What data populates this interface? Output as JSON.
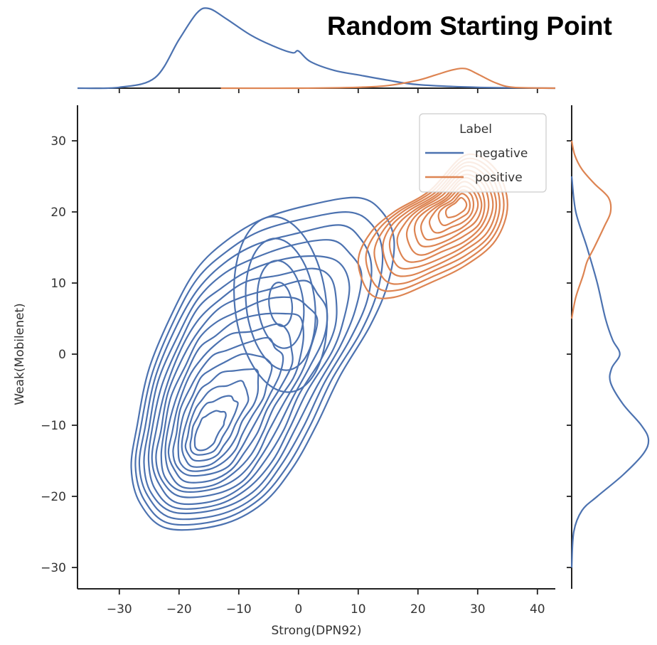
{
  "chart_data": {
    "type": "kde_contour_joint",
    "title": "Random Starting Point",
    "xlabel": "Strong(DPN92)",
    "ylabel": "Weak(Mobilenet)",
    "xlim": [
      -37,
      43
    ],
    "ylim": [
      -33,
      35
    ],
    "xticks": [
      -30,
      -20,
      -10,
      0,
      10,
      20,
      30,
      40
    ],
    "yticks": [
      -30,
      -20,
      -10,
      0,
      10,
      20,
      30
    ],
    "xtick_labels": [
      "−30",
      "−20",
      "−10",
      "0",
      "10",
      "20",
      "30",
      "40"
    ],
    "ytick_labels": [
      "−30",
      "−20",
      "−10",
      "0",
      "10",
      "20",
      "30"
    ],
    "grid": false,
    "legend": {
      "title": "Label",
      "placement": "top-right"
    },
    "series": [
      {
        "name": "negative",
        "color": "#4c72b0",
        "contour_levels": 16,
        "kde_center": [
          -16,
          -12
        ],
        "outer_contour": [
          [
            -22,
            -24.5
          ],
          [
            -26.5,
            -21
          ],
          [
            -28,
            -16
          ],
          [
            -27,
            -10
          ],
          [
            -25,
            -2
          ],
          [
            -21,
            6
          ],
          [
            -17,
            12
          ],
          [
            -12,
            16
          ],
          [
            -6,
            19
          ],
          [
            2,
            21
          ],
          [
            10,
            22
          ],
          [
            14,
            20
          ],
          [
            16,
            16
          ],
          [
            15,
            10
          ],
          [
            12,
            4
          ],
          [
            7,
            -3
          ],
          [
            3,
            -10
          ],
          [
            -1,
            -16
          ],
          [
            -6,
            -21
          ],
          [
            -13,
            -24
          ],
          [
            -22,
            -24.5
          ]
        ],
        "modes": [
          [
            -16,
            -12
          ],
          [
            -3,
            7
          ]
        ],
        "x_marginal": {
          "x": [
            -37,
            -30,
            -24,
            -20,
            -17,
            -15,
            -12,
            -8,
            -4,
            -1,
            0,
            2,
            6,
            10,
            15,
            20,
            30,
            43
          ],
          "density": [
            0,
            0.001,
            0.012,
            0.055,
            0.085,
            0.09,
            0.078,
            0.06,
            0.047,
            0.04,
            0.042,
            0.03,
            0.02,
            0.015,
            0.009,
            0.004,
            0.001,
            0
          ]
        },
        "y_marginal": {
          "y": [
            -30,
            -25,
            -22,
            -20,
            -17,
            -14,
            -12,
            -10,
            -7,
            -4,
            -2,
            0,
            2,
            5,
            10,
            15,
            20,
            25
          ],
          "density": [
            0,
            0.002,
            0.01,
            0.025,
            0.05,
            0.07,
            0.075,
            0.068,
            0.05,
            0.038,
            0.039,
            0.047,
            0.04,
            0.033,
            0.025,
            0.015,
            0.004,
            0
          ]
        }
      },
      {
        "name": "positive",
        "color": "#dd8452",
        "contour_levels": 12,
        "kde_center": [
          27,
          21
        ],
        "outer_contour": [
          [
            10,
            13
          ],
          [
            12,
            17
          ],
          [
            16,
            20
          ],
          [
            22,
            23
          ],
          [
            28,
            28
          ],
          [
            33,
            26
          ],
          [
            35,
            21
          ],
          [
            33,
            16
          ],
          [
            28,
            12.5
          ],
          [
            22,
            10
          ],
          [
            16,
            8
          ],
          [
            12,
            8.5
          ],
          [
            10,
            13
          ]
        ],
        "modes": [
          [
            27,
            21
          ]
        ],
        "x_marginal": {
          "x": [
            -13,
            0,
            10,
            15,
            20,
            23,
            26,
            28,
            30,
            33,
            36,
            43
          ],
          "density": [
            0,
            0,
            0.001,
            0.003,
            0.009,
            0.015,
            0.021,
            0.022,
            0.016,
            0.006,
            0.001,
            0
          ]
        },
        "y_marginal": {
          "y": [
            5,
            8,
            11,
            13,
            15,
            18,
            20,
            22,
            24,
            26,
            28,
            30
          ],
          "density": [
            0,
            0.004,
            0.011,
            0.015,
            0.022,
            0.032,
            0.038,
            0.036,
            0.022,
            0.01,
            0.003,
            0
          ]
        }
      }
    ]
  }
}
